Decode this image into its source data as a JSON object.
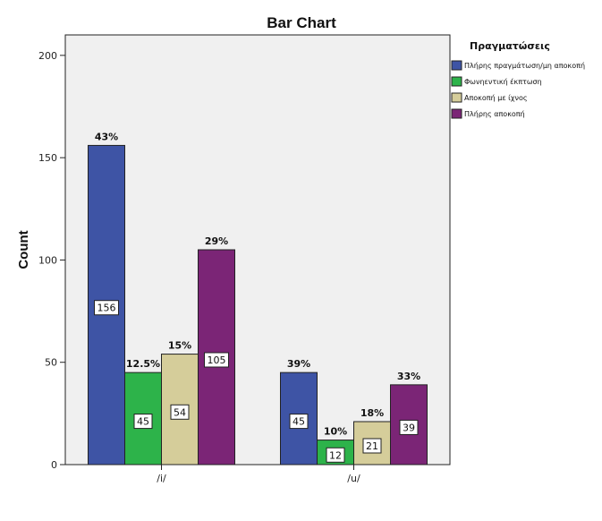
{
  "chart_data": {
    "type": "bar",
    "title": "Bar Chart",
    "xlabel": "",
    "ylabel": "Count",
    "ylim": [
      0,
      210
    ],
    "yticks": [
      0,
      50,
      100,
      150,
      200
    ],
    "grid": false,
    "legend_placement": "right",
    "legend_title": "Πραγματώσεις",
    "categories": [
      "/i/",
      "/u/"
    ],
    "series": [
      {
        "name": "Πλήρης πραγμάτωση/μη αποκοπή",
        "color": "#3e54a5",
        "values": [
          156,
          45
        ],
        "percent_labels": [
          "43%",
          "39%"
        ]
      },
      {
        "name": "Φωνηεντική έκπτωση",
        "color": "#2db34a",
        "values": [
          45,
          12
        ],
        "percent_labels": [
          "12.5%",
          "10%"
        ]
      },
      {
        "name": "Αποκοπή με ίχνος",
        "color": "#d5cd9a",
        "values": [
          54,
          21
        ],
        "percent_labels": [
          "15%",
          "18%"
        ]
      },
      {
        "name": "Πλήρης αποκοπή",
        "color": "#7b2576",
        "values": [
          105,
          39
        ],
        "percent_labels": [
          "29%",
          "33%"
        ]
      }
    ]
  }
}
